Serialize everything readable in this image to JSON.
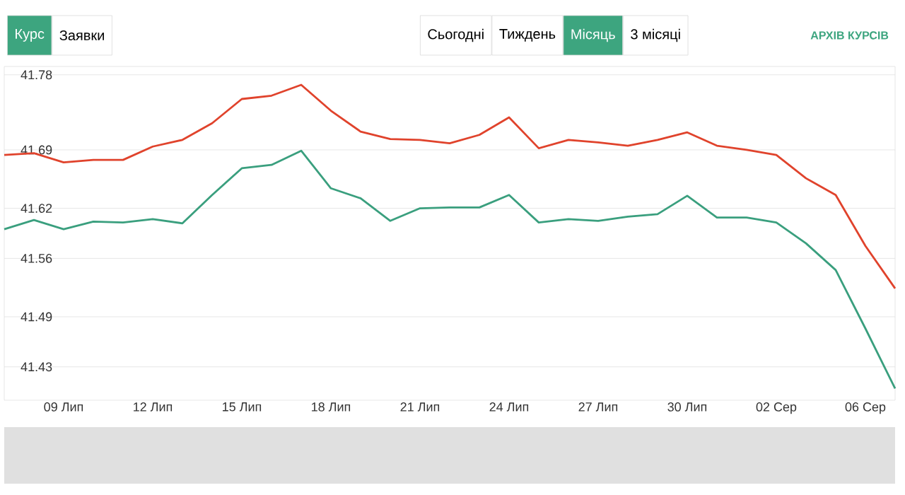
{
  "chart_data": {
    "type": "line",
    "categories": [
      null,
      null,
      "09 Лип",
      null,
      null,
      "12 Лип",
      null,
      null,
      "15 Лип",
      null,
      null,
      "18 Лип",
      null,
      null,
      "21 Лип",
      null,
      null,
      "24 Лип",
      null,
      null,
      "27 Лип",
      null,
      null,
      "30 Лип",
      null,
      null,
      "02 Сер",
      null,
      null,
      "06 Сер",
      null
    ],
    "series": [
      {
        "color": "#e0432c",
        "values": [
          41.684,
          41.686,
          41.675,
          41.678,
          41.678,
          41.694,
          41.702,
          41.722,
          41.751,
          41.755,
          41.768,
          41.737,
          41.712,
          41.703,
          41.702,
          41.698,
          41.708,
          41.729,
          41.692,
          41.702,
          41.699,
          41.695,
          41.702,
          41.711,
          41.695,
          41.69,
          41.684,
          41.656,
          41.636,
          41.575,
          41.524
        ]
      },
      {
        "color": "#3a9f7e",
        "values": [
          41.595,
          41.606,
          41.595,
          41.604,
          41.603,
          41.607,
          41.602,
          41.636,
          41.668,
          41.672,
          41.689,
          41.644,
          41.632,
          41.605,
          41.62,
          41.621,
          41.621,
          41.636,
          41.603,
          41.607,
          41.605,
          41.61,
          41.613,
          41.635,
          41.609,
          41.609,
          41.603,
          41.578,
          41.546,
          41.476,
          41.404
        ]
      }
    ],
    "ylim": [
      41.39,
      41.79
    ],
    "yticks": [
      41.43,
      41.49,
      41.56,
      41.62,
      41.69,
      41.78
    ],
    "grid": "y",
    "annotations": [
      "Курс",
      "Заявки",
      "Сьогодні",
      "Тиждень",
      "Місяць",
      "3 місяці",
      "АРХІВ КУРСІВ"
    ]
  }
}
